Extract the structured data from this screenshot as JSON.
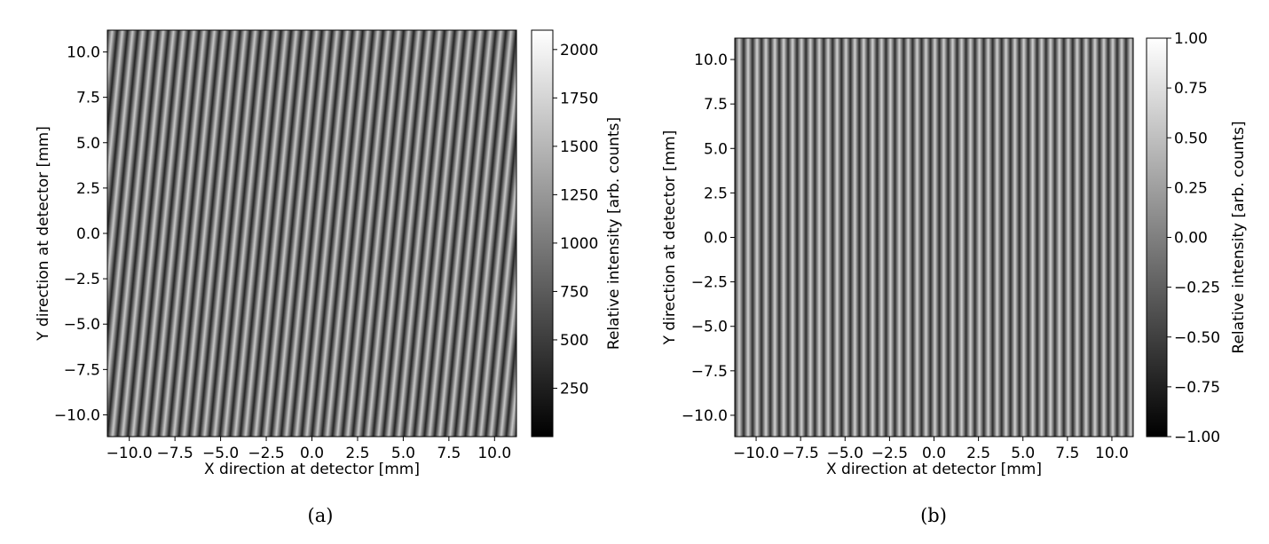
{
  "chart_data": [
    {
      "type": "heatmap",
      "caption": "(a)",
      "xlabel": "X direction at detector [mm]",
      "ylabel": "Y direction at detector [mm]",
      "xlim": [
        -11.2,
        11.2
      ],
      "ylim": [
        -11.2,
        11.2
      ],
      "xticks": [
        -10.0,
        -7.5,
        -5.0,
        -2.5,
        0.0,
        2.5,
        5.0,
        7.5,
        10.0
      ],
      "xtick_labels": [
        "−10.0",
        "−7.5",
        "−5.0",
        "−2.5",
        "0.0",
        "2.5",
        "5.0",
        "7.5",
        "10.0"
      ],
      "yticks": [
        10.0,
        7.5,
        5.0,
        2.5,
        0.0,
        -2.5,
        -5.0,
        -7.5,
        -10.0
      ],
      "ytick_labels": [
        "10.0",
        "7.5",
        "5.0",
        "2.5",
        "0.0",
        "−2.5",
        "−5.0",
        "−7.5",
        "−10.0"
      ],
      "colorbar": {
        "label": "Relative intensity [arb. counts]",
        "range": [
          0,
          2100
        ],
        "ticks": [
          2000,
          1750,
          1500,
          1250,
          1000,
          750,
          500,
          250
        ],
        "tick_labels": [
          "2000",
          "1750",
          "1500",
          "1250",
          "1000",
          "750",
          "500",
          "250"
        ],
        "colormap": "gray"
      },
      "pattern": {
        "description_kind": "tilted fringes",
        "period_mm": 0.56,
        "tilt_mm_per_mm": 0.1,
        "dark_value": 300,
        "bright_value": 1650
      }
    },
    {
      "type": "heatmap",
      "caption": "(b)",
      "xlabel": "X direction at detector [mm]",
      "ylabel": "Y direction at detector [mm]",
      "xlim": [
        -11.2,
        11.2
      ],
      "ylim": [
        -11.2,
        11.2
      ],
      "xticks": [
        -10.0,
        -7.5,
        -5.0,
        -2.5,
        0.0,
        2.5,
        5.0,
        7.5,
        10.0
      ],
      "xtick_labels": [
        "−10.0",
        "−7.5",
        "−5.0",
        "−2.5",
        "0.0",
        "2.5",
        "5.0",
        "7.5",
        "10.0"
      ],
      "yticks": [
        10.0,
        7.5,
        5.0,
        2.5,
        0.0,
        -2.5,
        -5.0,
        -7.5,
        -10.0
      ],
      "ytick_labels": [
        "10.0",
        "7.5",
        "5.0",
        "2.5",
        "0.0",
        "−2.5",
        "−5.0",
        "−7.5",
        "−10.0"
      ],
      "colorbar": {
        "label": "Relative intensity [arb. counts]",
        "range": [
          -1.0,
          1.0
        ],
        "ticks": [
          1.0,
          0.75,
          0.5,
          0.25,
          0.0,
          -0.25,
          -0.5,
          -0.75,
          -1.0
        ],
        "tick_labels": [
          "1.00",
          "0.75",
          "0.50",
          "0.25",
          "0.00",
          "−0.25",
          "−0.50",
          "−0.75",
          "−1.00"
        ],
        "colormap": "gray"
      },
      "pattern": {
        "description_kind": "vertical fringes",
        "period_mm": 0.5,
        "tilt_mm_per_mm": 0.0,
        "dark_value": -0.65,
        "bright_value": 0.65
      }
    }
  ]
}
